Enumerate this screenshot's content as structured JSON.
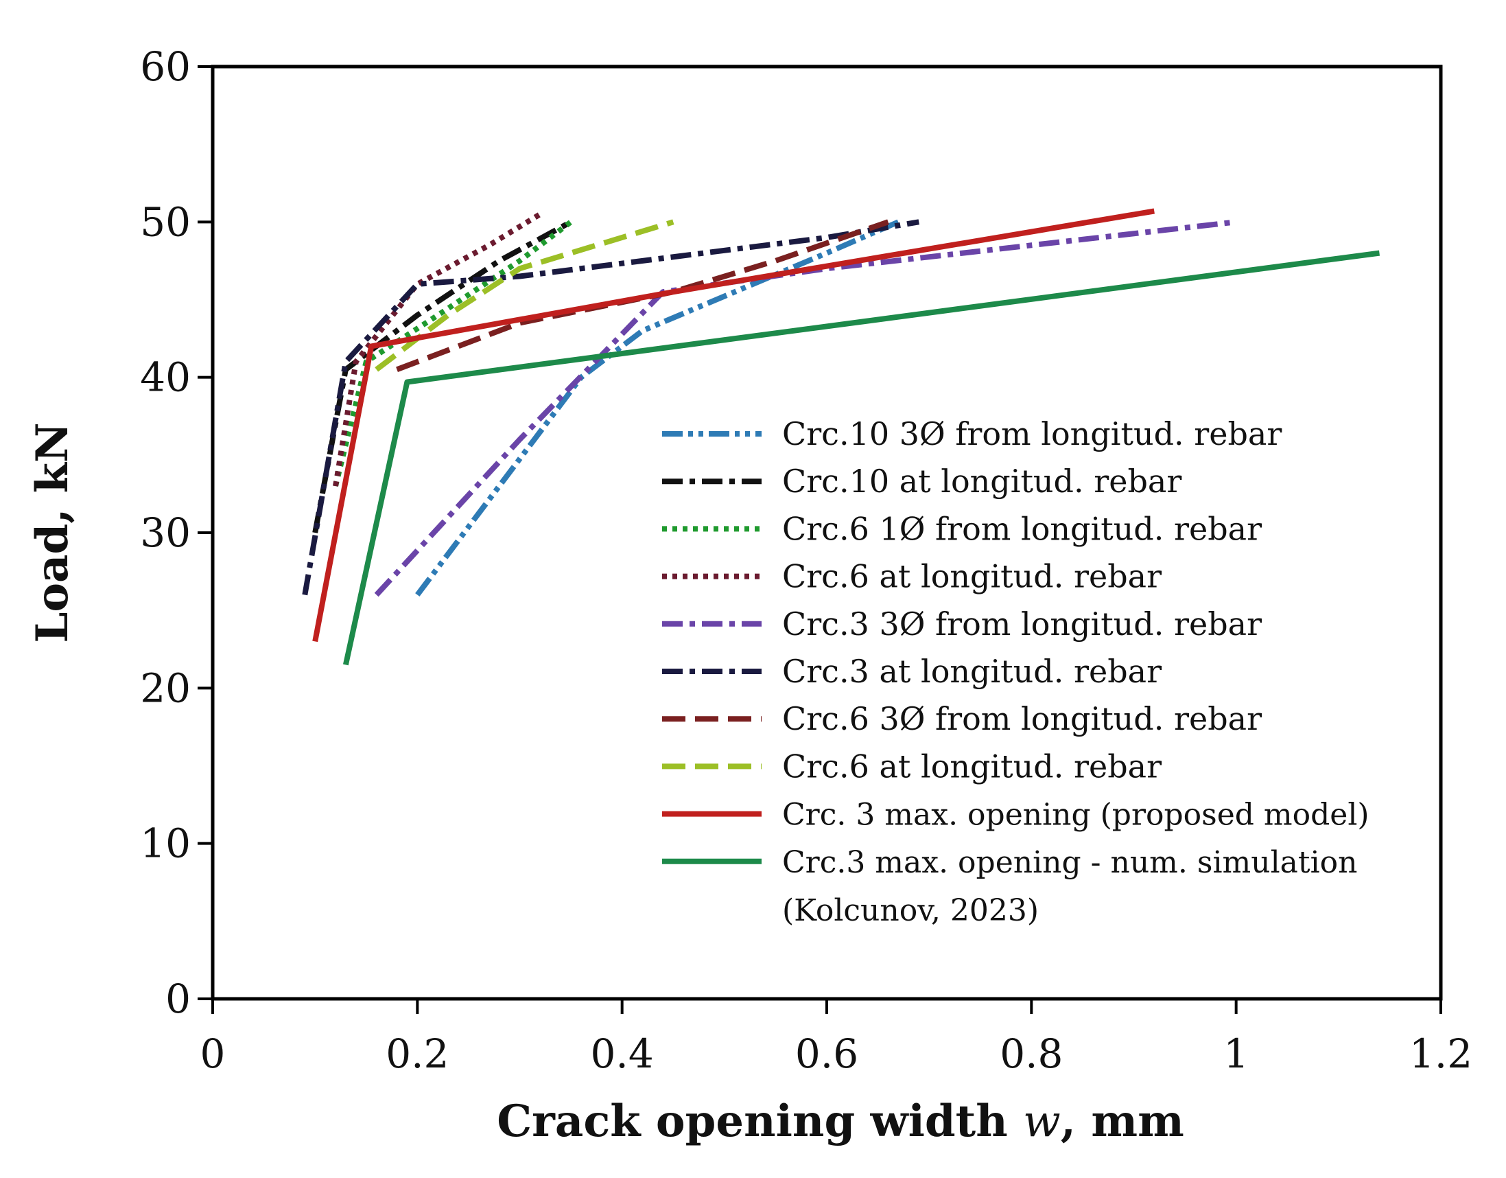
{
  "chart_data": {
    "type": "line",
    "title": "",
    "xlabel": "Crack opening width w, mm",
    "xlabel_parts": {
      "prefix": "Crack opening width ",
      "var": "w",
      "suffix": ", mm"
    },
    "ylabel": "Load, kN",
    "xlim": [
      0,
      1.2
    ],
    "ylim": [
      0,
      60
    ],
    "xticks": [
      0,
      0.2,
      0.4,
      0.6,
      0.8,
      1,
      1.2
    ],
    "xtick_labels": [
      "0",
      "0.2",
      "0.4",
      "0.6",
      "0.8",
      "1",
      "1.2"
    ],
    "yticks": [
      0,
      10,
      20,
      30,
      40,
      50,
      60
    ],
    "ytick_labels": [
      "0",
      "10",
      "20",
      "30",
      "40",
      "50",
      "60"
    ],
    "grid": false,
    "legend_position": "right-center",
    "series": [
      {
        "name": "Crc.10 3Ø from longitud. rebar",
        "color": "#2e7bb5",
        "dash": "dashdotdot",
        "x": [
          0.2,
          0.36,
          0.42,
          0.6,
          0.67
        ],
        "y": [
          26,
          40,
          43,
          48,
          50
        ]
      },
      {
        "name": "Crc.10 at longitud. rebar",
        "color": "#111111",
        "dash": "dashdot",
        "x": [
          0.1,
          0.13,
          0.2,
          0.28,
          0.35
        ],
        "y": [
          30,
          40.5,
          44,
          47.5,
          50
        ]
      },
      {
        "name": "Crc.6 1Ø from longitud. rebar",
        "color": "#1f9a2e",
        "dash": "dot",
        "x": [
          0.12,
          0.15,
          0.22,
          0.3,
          0.35
        ],
        "y": [
          33,
          41,
          44,
          47.5,
          50
        ]
      },
      {
        "name": "Crc.6 at longitud. rebar",
        "color": "#6b1b2f",
        "dash": "dot",
        "x": [
          0.12,
          0.14,
          0.2,
          0.27,
          0.32
        ],
        "y": [
          33,
          41,
          46,
          48.5,
          50.5
        ]
      },
      {
        "name": "Crc.3 3Ø from longitud. rebar",
        "color": "#6a44a8",
        "dash": "dashdot",
        "x": [
          0.16,
          0.3,
          0.44,
          0.6,
          1.0
        ],
        "y": [
          26,
          36,
          45.5,
          47,
          50
        ]
      },
      {
        "name": "Crc.3 at longitud. rebar",
        "color": "#1a1a40",
        "dash": "dashdot",
        "x": [
          0.09,
          0.13,
          0.2,
          0.3,
          0.6,
          0.69
        ],
        "y": [
          26,
          41,
          46,
          46.5,
          49,
          50
        ]
      },
      {
        "name": "Crc.6 3Ø from longitud. rebar",
        "color": "#7a2020",
        "dash": "dash",
        "x": [
          0.18,
          0.3,
          0.45,
          0.55,
          0.66
        ],
        "y": [
          40.5,
          43.5,
          45.5,
          47.5,
          50
        ]
      },
      {
        "name": "Crc.6 at longitud. rebar",
        "color": "#9cbf26",
        "dash": "dash",
        "x": [
          0.16,
          0.23,
          0.3,
          0.45
        ],
        "y": [
          40.5,
          44,
          47,
          50
        ]
      },
      {
        "name": "Crc. 3 max. opening (proposed model)",
        "color": "#c0201e",
        "dash": "solid",
        "x": [
          0.1,
          0.155,
          0.45,
          0.92
        ],
        "y": [
          23,
          42,
          45.5,
          50.7
        ]
      },
      {
        "name": "Crc.3 max. opening - num. simulation",
        "name_line2": "(Kolcunov, 2023)",
        "color": "#1d8a4a",
        "dash": "solid",
        "x": [
          0.13,
          0.19,
          1.14
        ],
        "y": [
          21.5,
          39.7,
          48
        ]
      }
    ]
  }
}
